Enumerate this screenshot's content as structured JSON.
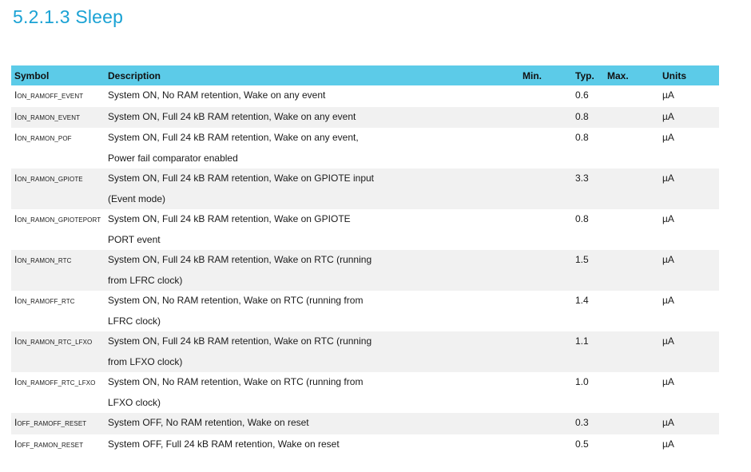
{
  "section_title": "5.2.1.3 Sleep",
  "table": {
    "headers": {
      "symbol": "Symbol",
      "description": "Description",
      "min": "Min.",
      "typ": "Typ.",
      "max": "Max.",
      "units": "Units"
    },
    "rows": [
      {
        "symbol_main": "I",
        "symbol_sub": "ON_RAMOFF_EVENT",
        "description_lines": [
          "System ON, No RAM retention, Wake on any event"
        ],
        "min": "",
        "typ": "0.6",
        "max": "",
        "units": "µA"
      },
      {
        "symbol_main": "I",
        "symbol_sub": "ON_RAMON_EVENT",
        "description_lines": [
          "System ON, Full 24 kB RAM retention, Wake on any event"
        ],
        "min": "",
        "typ": "0.8",
        "max": "",
        "units": "µA"
      },
      {
        "symbol_main": "I",
        "symbol_sub": "ON_RAMON_POF",
        "description_lines": [
          "System ON, Full 24 kB RAM retention, Wake on any event,",
          "Power fail comparator enabled"
        ],
        "min": "",
        "typ": "0.8",
        "max": "",
        "units": "µA"
      },
      {
        "symbol_main": "I",
        "symbol_sub": "ON_RAMON_GPIOTE",
        "description_lines": [
          "System ON, Full 24 kB RAM retention, Wake on GPIOTE input",
          "(Event mode)"
        ],
        "min": "",
        "typ": "3.3",
        "max": "",
        "units": "µA"
      },
      {
        "symbol_main": "I",
        "symbol_sub": "ON_RAMON_GPIOTEPORT",
        "description_lines": [
          "System ON, Full 24 kB RAM retention, Wake on GPIOTE",
          "PORT event"
        ],
        "min": "",
        "typ": "0.8",
        "max": "",
        "units": "µA"
      },
      {
        "symbol_main": "I",
        "symbol_sub": "ON_RAMON_RTC",
        "description_lines": [
          "System ON, Full 24 kB RAM retention, Wake on RTC (running",
          "from LFRC clock)"
        ],
        "min": "",
        "typ": "1.5",
        "max": "",
        "units": "µA"
      },
      {
        "symbol_main": "I",
        "symbol_sub": "ON_RAMOFF_RTC",
        "description_lines": [
          "System ON, No RAM retention, Wake on RTC (running from",
          "LFRC clock)"
        ],
        "min": "",
        "typ": "1.4",
        "max": "",
        "units": "µA"
      },
      {
        "symbol_main": "I",
        "symbol_sub": "ON_RAMON_RTC_LFXO",
        "description_lines": [
          "System ON, Full 24 kB RAM retention, Wake on RTC (running",
          "from LFXO clock)"
        ],
        "min": "",
        "typ": "1.1",
        "max": "",
        "units": "µA"
      },
      {
        "symbol_main": "I",
        "symbol_sub": "ON_RAMOFF_RTC_LFXO",
        "description_lines": [
          "System ON, No RAM retention, Wake on RTC (running from",
          "LFXO clock)"
        ],
        "min": "",
        "typ": "1.0",
        "max": "",
        "units": "µA"
      },
      {
        "symbol_main": "I",
        "symbol_sub": "OFF_RAMOFF_RESET",
        "description_lines": [
          "System OFF, No RAM retention, Wake on reset"
        ],
        "min": "",
        "typ": "0.3",
        "max": "",
        "units": "µA"
      },
      {
        "symbol_main": "I",
        "symbol_sub": "OFF_RAMON_RESET",
        "description_lines": [
          "System OFF, Full 24 kB RAM retention, Wake on reset"
        ],
        "min": "",
        "typ": "0.5",
        "max": "",
        "units": "µA"
      }
    ]
  },
  "colors": {
    "title": "#1aa2d4",
    "header_bg": "#5ccbe8",
    "alt_row_bg": "#f1f1f1"
  }
}
